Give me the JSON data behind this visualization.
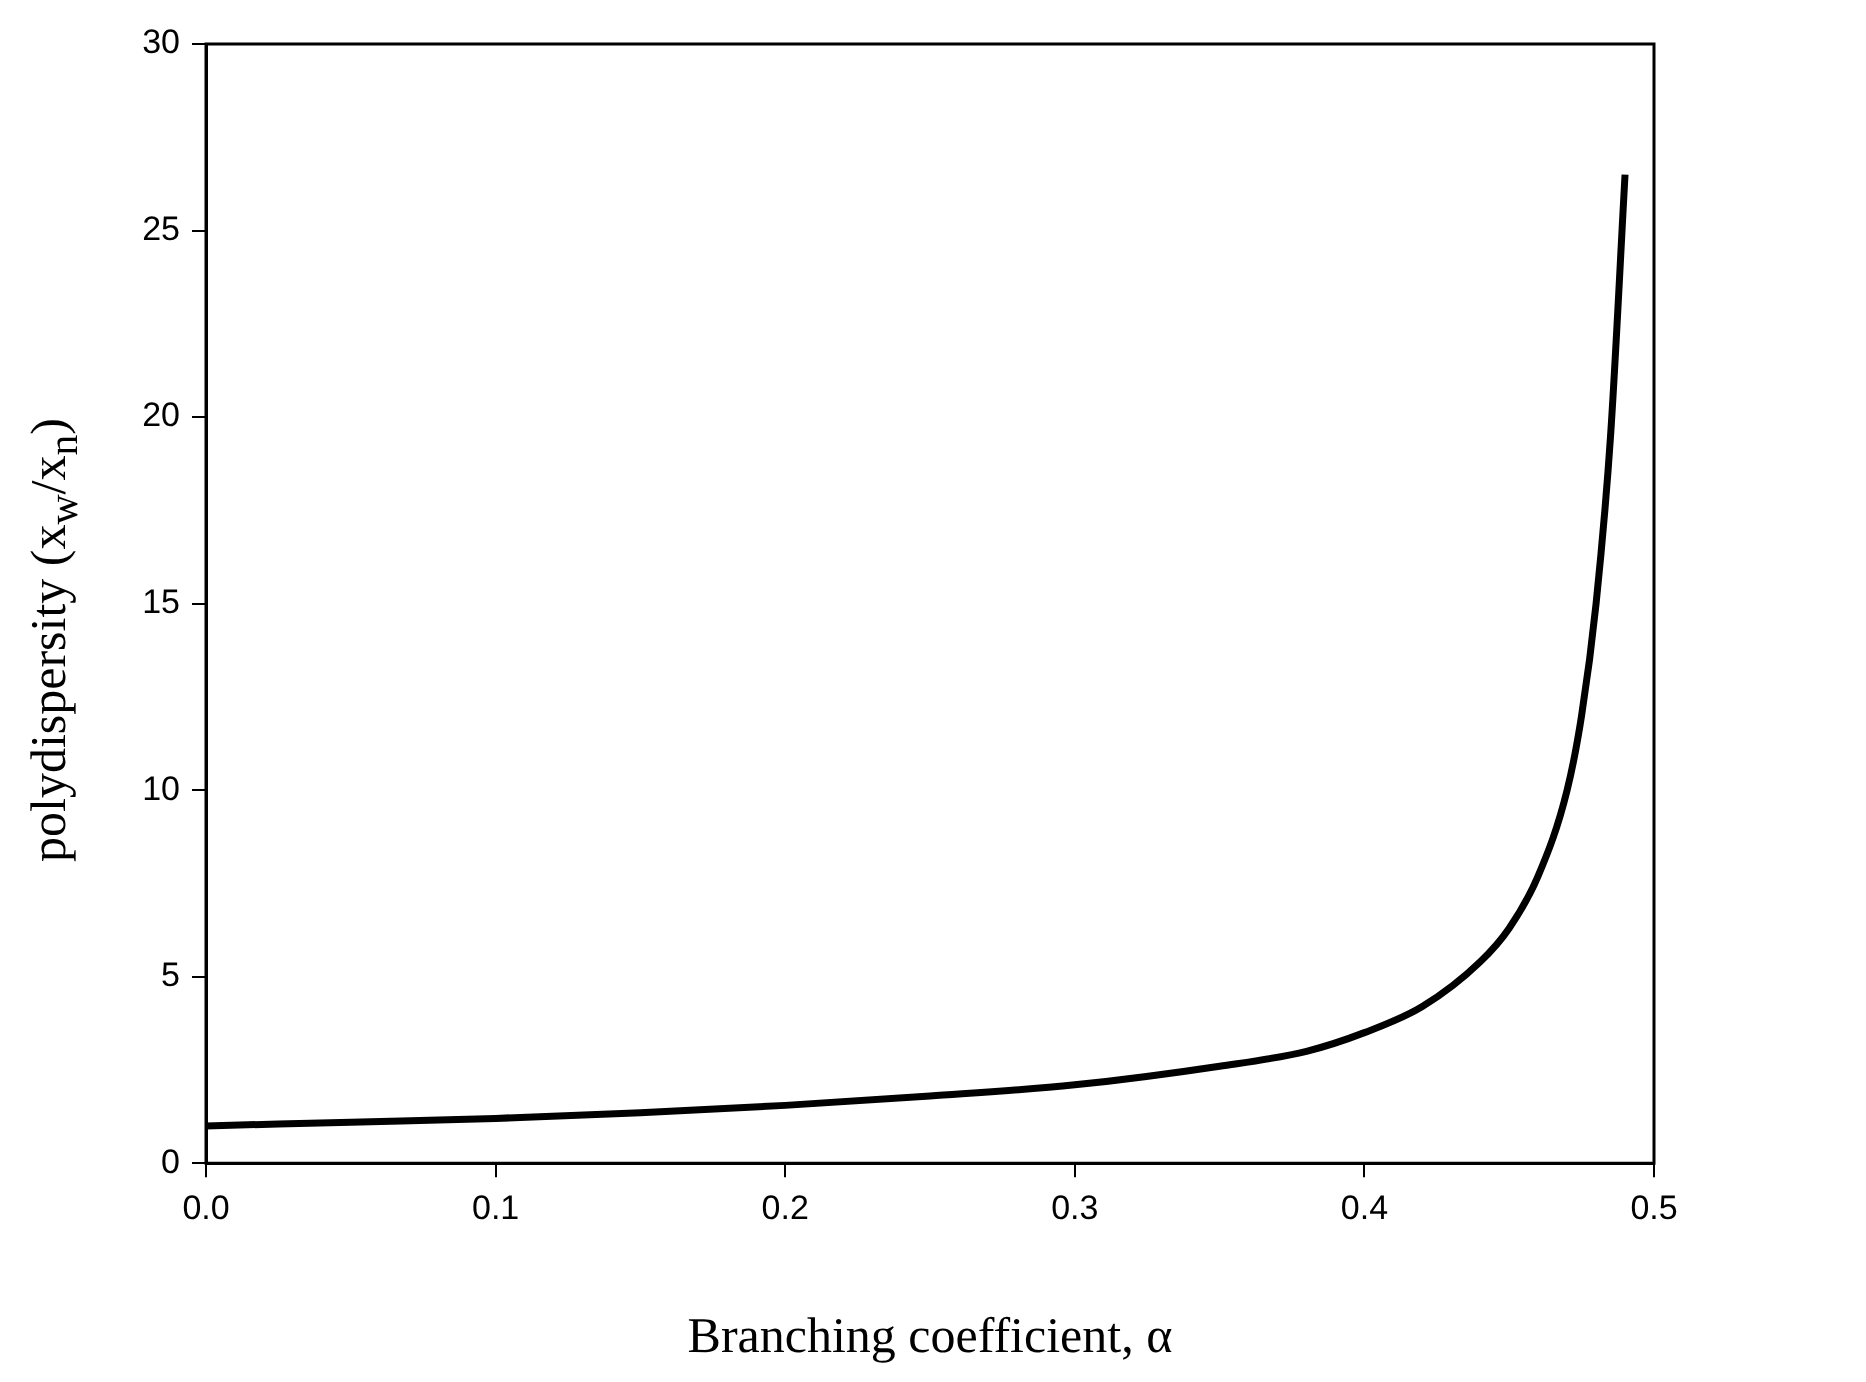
{
  "chart_data": {
    "type": "line",
    "xlabel": "Branching coefficient, α",
    "ylabel": "polydispersity (x$_{w}$/x$_{n}$)",
    "x": [
      0,
      0.05,
      0.1,
      0.15,
      0.2,
      0.25,
      0.3,
      0.35,
      0.38,
      0.4,
      0.42,
      0.44,
      0.45,
      0.46,
      0.47,
      0.475,
      0.48,
      0.485,
      0.49
    ],
    "series": [
      {
        "color": "#000000",
        "values": [
          1.0,
          1.1,
          1.2,
          1.35,
          1.55,
          1.8,
          2.1,
          2.6,
          3.0,
          3.5,
          4.2,
          5.4,
          6.3,
          7.7,
          10.0,
          12.0,
          15.0,
          19.5,
          26.5
        ]
      }
    ],
    "xlim": [
      0,
      0.5
    ],
    "xticks": [
      {
        "value": 0,
        "label": "0.0"
      },
      0.1,
      0.2,
      0.3,
      0.4,
      0.5
    ],
    "ylim": [
      0,
      30
    ],
    "yticks": [
      0,
      5,
      10,
      15,
      20,
      25,
      30
    ],
    "grid": false,
    "legend": false,
    "marker": "none",
    "line_style": "solid"
  }
}
